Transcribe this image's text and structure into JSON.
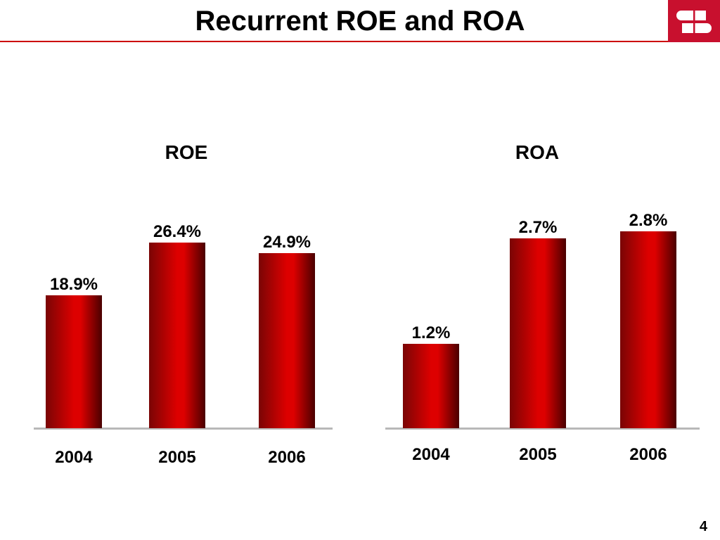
{
  "slide": {
    "title": "Recurrent ROE and ROA",
    "page_number": "4"
  },
  "logo": {
    "icon": "logo-icon"
  },
  "colors": {
    "accent": "#cc0000",
    "logo_background": "#c8102e",
    "bar_edge": "#7a0505",
    "bar_center": "#dd0000",
    "bar_edge_dark": "#4a0000",
    "baseline": "#b8b8b8",
    "text": "#000000"
  },
  "chart_data": [
    {
      "type": "bar",
      "title": "ROE",
      "categories": [
        "2004",
        "2005",
        "2006"
      ],
      "values": [
        18.9,
        26.4,
        24.9
      ],
      "data_labels": [
        "18.9%",
        "26.4%",
        "24.9%"
      ],
      "ylim": [
        0,
        30
      ],
      "grid": false
    },
    {
      "type": "bar",
      "title": "ROA",
      "categories": [
        "2004",
        "2005",
        "2006"
      ],
      "values": [
        1.2,
        2.7,
        2.8
      ],
      "data_labels": [
        "1.2%",
        "2.7%",
        "2.8%"
      ],
      "ylim": [
        0,
        3
      ],
      "grid": false
    }
  ]
}
